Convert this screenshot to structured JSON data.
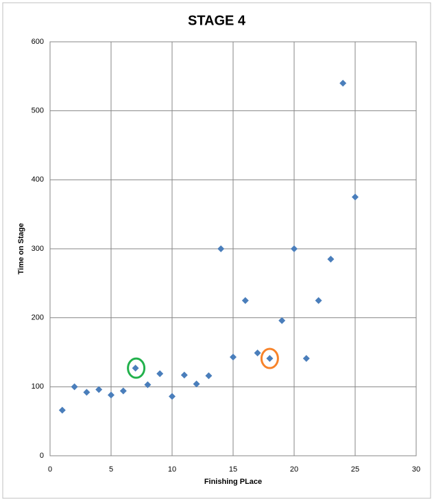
{
  "chart_data": {
    "type": "scatter",
    "title": "STAGE 4",
    "x_label": "Finishing  PLace",
    "y_label": "Time on Stage",
    "series": [
      {
        "color": "#4a7ebb",
        "x": [
          1,
          2,
          3,
          4,
          5,
          6,
          7,
          8,
          9,
          10,
          11,
          12,
          13,
          14,
          15,
          16,
          17,
          18,
          19,
          20,
          21,
          22,
          23,
          24,
          25
        ],
        "values": [
          66,
          100,
          92,
          96,
          88,
          94,
          127,
          103,
          119,
          86,
          117,
          104,
          116,
          300,
          143,
          225,
          149,
          141,
          196,
          300,
          141,
          225,
          285,
          540,
          375
        ]
      }
    ],
    "xlim": [
      0,
      30
    ],
    "xticks": [
      0,
      5,
      10,
      15,
      20,
      25,
      30
    ],
    "ylim": [
      0,
      600
    ],
    "yticks": [
      0,
      100,
      200,
      300,
      400,
      500,
      600
    ],
    "grid": true
  }
}
